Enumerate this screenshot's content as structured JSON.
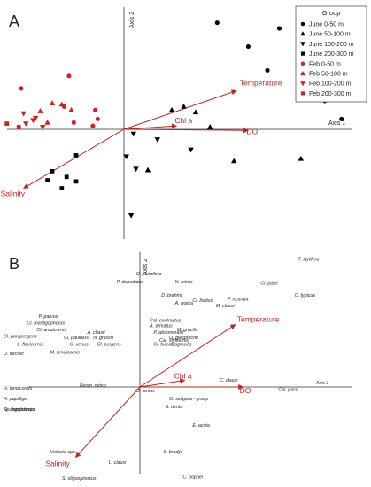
{
  "colors": {
    "june": "#000000",
    "feb": "#d42020",
    "vector": "#c42020",
    "axis": "#333333"
  },
  "chart_data": [
    {
      "type": "scatter",
      "panel_label": "A",
      "axis1_label": "Axis 1",
      "axis2_label": "Axis 2",
      "xlim": [
        -1,
        1
      ],
      "ylim": [
        -1,
        1
      ],
      "legend": {
        "title": "Group",
        "placement": "top-right",
        "entries": [
          {
            "label": "June 0-50 m",
            "marker": "circle",
            "color": "june"
          },
          {
            "label": "June 50-100 m",
            "marker": "triangle-up",
            "color": "june"
          },
          {
            "label": "June 100-200 m",
            "marker": "triangle-down",
            "color": "june"
          },
          {
            "label": "June 200-300 m",
            "marker": "square",
            "color": "june"
          },
          {
            "label": "Feb 0-50 m",
            "marker": "circle",
            "color": "feb"
          },
          {
            "label": "Feb 50-100 m",
            "marker": "triangle-up",
            "color": "feb"
          },
          {
            "label": "Feb 100-200 m",
            "marker": "triangle-down",
            "color": "feb"
          },
          {
            "label": "Feb 200-300 m",
            "marker": "square",
            "color": "feb"
          }
        ]
      },
      "vectors": [
        {
          "label": "Temperature",
          "x": 0.47,
          "y": 0.34
        },
        {
          "label": "Chl a",
          "x": 0.22,
          "y": 0.03
        },
        {
          "label": "DO",
          "x": 0.52,
          "y": -0.01
        },
        {
          "label": "Salinity",
          "x": -0.42,
          "y": -0.52
        }
      ],
      "series": [
        {
          "group": 0,
          "points": [
            [
              0.39,
              0.94
            ],
            [
              0.65,
              0.89
            ],
            [
              0.52,
              0.73
            ],
            [
              0.92,
              0.54
            ],
            [
              0.6,
              0.52
            ],
            [
              0.84,
              0.25
            ],
            [
              0.91,
              0.09
            ]
          ]
        },
        {
          "group": 1,
          "points": [
            [
              0.25,
              0.2
            ],
            [
              0.2,
              0.17
            ],
            [
              0.3,
              0.15
            ],
            [
              0.36,
              0.02
            ],
            [
              0.46,
              -0.28
            ],
            [
              0.74,
              -0.26
            ],
            [
              0.1,
              -0.36
            ]
          ]
        },
        {
          "group": 2,
          "points": [
            [
              0.04,
              -0.04
            ],
            [
              0.14,
              -0.09
            ],
            [
              0.28,
              -0.18
            ],
            [
              0.01,
              -0.24
            ],
            [
              0.05,
              -0.35
            ],
            [
              0.03,
              -0.76
            ]
          ]
        },
        {
          "group": 3,
          "points": [
            [
              -0.2,
              -0.23
            ],
            [
              -0.3,
              -0.37
            ],
            [
              -0.24,
              -0.42
            ],
            [
              -0.32,
              -0.45
            ],
            [
              -0.2,
              -0.46
            ],
            [
              -0.26,
              -0.52
            ]
          ]
        },
        {
          "group": 4,
          "points": [
            [
              -0.23,
              0.47
            ],
            [
              -0.43,
              0.36
            ],
            [
              -0.25,
              0.2
            ],
            [
              -0.12,
              0.17
            ],
            [
              -0.11,
              0.09
            ],
            [
              -0.13,
              0.03
            ],
            [
              -0.21,
              0.06
            ]
          ]
        },
        {
          "group": 5,
          "points": [
            [
              -0.3,
              0.23
            ],
            [
              -0.26,
              0.22
            ],
            [
              -0.35,
              0.16
            ],
            [
              -0.22,
              0.17
            ],
            [
              -0.32,
              0.06
            ]
          ]
        },
        {
          "group": 6,
          "points": [
            [
              -0.38,
              0.08
            ],
            [
              -0.41,
              0.05
            ],
            [
              -0.34,
              0.02
            ],
            [
              -0.37,
              0.1
            ],
            [
              -0.42,
              0.14
            ]
          ]
        },
        {
          "group": 7,
          "points": [
            [
              -0.65,
              0.1
            ],
            [
              -0.57,
              0.1
            ],
            [
              -0.49,
              0.05
            ],
            [
              -0.55,
              0.03
            ],
            [
              -0.44,
              0.02
            ],
            [
              -0.62,
              0.01
            ],
            [
              -0.99,
              0.0
            ]
          ]
        }
      ]
    },
    {
      "type": "scatter",
      "panel_label": "B",
      "axis1_label": "Axis 1",
      "axis2_label": "Axis 2",
      "xlim": [
        -1,
        1
      ],
      "ylim": [
        -1,
        1
      ],
      "vectors": [
        {
          "label": "Temperature",
          "x": 0.49,
          "y": 0.47
        },
        {
          "label": "Chl a",
          "x": 0.23,
          "y": 0.05
        },
        {
          "label": "DO",
          "x": 0.53,
          "y": 0.0
        },
        {
          "label": "Salinity",
          "x": -0.33,
          "y": -0.53
        }
      ],
      "species": [
        {
          "name": "T. stylifera",
          "x": 0.92,
          "y": 0.95
        },
        {
          "name": "Cl. jobei",
          "x": 0.62,
          "y": 0.77
        },
        {
          "name": "O. plumifera",
          "x": -0.02,
          "y": 0.84
        },
        {
          "name": "P. denudatus",
          "x": -0.12,
          "y": 0.78
        },
        {
          "name": "N. minor",
          "x": 0.18,
          "y": 0.78
        },
        {
          "name": "D. brehmi",
          "x": 0.11,
          "y": 0.68
        },
        {
          "name": "C. typicus",
          "x": 0.9,
          "y": 0.68
        },
        {
          "name": "Cl. lividus",
          "x": 0.27,
          "y": 0.64
        },
        {
          "name": "A. typica",
          "x": 0.18,
          "y": 0.62
        },
        {
          "name": "F. rostrata",
          "x": 0.45,
          "y": 0.65
        },
        {
          "name": "M. clausi",
          "x": 0.39,
          "y": 0.6
        },
        {
          "name": "P. parvus",
          "x": -0.52,
          "y": 0.52
        },
        {
          "name": "Cal. contractus",
          "x": 0.05,
          "y": 0.49
        },
        {
          "name": "Cl. mastigophorus",
          "x": -0.58,
          "y": 0.47
        },
        {
          "name": "A. armatus",
          "x": 0.05,
          "y": 0.45
        },
        {
          "name": "M. gracilis",
          "x": 0.19,
          "y": 0.42
        },
        {
          "name": "Cl. arcuicornis",
          "x": -0.53,
          "y": 0.42
        },
        {
          "name": "A. clausi",
          "x": -0.27,
          "y": 0.4
        },
        {
          "name": "P. abdominalis",
          "x": 0.07,
          "y": 0.4
        },
        {
          "name": "O. giesbrechti",
          "x": 0.15,
          "y": 0.36
        },
        {
          "name": "Cl. parapergens",
          "x": -0.7,
          "y": 0.37
        },
        {
          "name": "Cl. paululus",
          "x": -0.39,
          "y": 0.36
        },
        {
          "name": "N. gracilis",
          "x": -0.24,
          "y": 0.36
        },
        {
          "name": "Cal. styliremis",
          "x": 0.1,
          "y": 0.34
        },
        {
          "name": "C. gracilis",
          "x": 0.16,
          "y": 0.31
        },
        {
          "name": "Cl. furcatus",
          "x": 0.07,
          "y": 0.31
        },
        {
          "name": "L. flavicornis",
          "x": -0.63,
          "y": 0.31
        },
        {
          "name": "C. venus",
          "x": -0.36,
          "y": 0.31
        },
        {
          "name": "Cl. pergens",
          "x": -0.22,
          "y": 0.31
        },
        {
          "name": "U. furcifer",
          "x": -0.75,
          "y": 0.24
        },
        {
          "name": "M. tenuicornis",
          "x": -0.46,
          "y": 0.25
        },
        {
          "name": "C. clausi",
          "x": 0.41,
          "y": 0.04
        },
        {
          "name": "Axis 1",
          "x": 0.97,
          "y": 0.02
        },
        {
          "name": "H. longicornis",
          "x": -0.77,
          "y": -0.02
        },
        {
          "name": "Neom. minor",
          "x": -0.31,
          "y": 0.0
        },
        {
          "name": "O. tenuis",
          "x": -0.02,
          "y": -0.04
        },
        {
          "name": "Cal. pavo",
          "x": 0.71,
          "y": -0.03
        },
        {
          "name": "O. setigera - group",
          "x": 0.15,
          "y": -0.1
        },
        {
          "name": "H. papilliger",
          "x": -0.7,
          "y": -0.1
        },
        {
          "name": "Sp. longicornis",
          "x": -0.97,
          "y": -0.18
        },
        {
          "name": "H. anguisticeps",
          "x": -0.73,
          "y": -0.18
        },
        {
          "name": "S. denta",
          "x": 0.13,
          "y": -0.16
        },
        {
          "name": "E. acuta",
          "x": 0.27,
          "y": -0.3
        },
        {
          "name": "Vettoria spp.",
          "x": -0.46,
          "y": -0.5
        },
        {
          "name": "S. bradyi",
          "x": 0.12,
          "y": -0.5
        },
        {
          "name": "L. clausi",
          "x": -0.16,
          "y": -0.58
        },
        {
          "name": "S. oligospinosus",
          "x": -0.4,
          "y": -0.7
        },
        {
          "name": "C. poppei",
          "x": 0.22,
          "y": -0.69
        }
      ]
    }
  ]
}
